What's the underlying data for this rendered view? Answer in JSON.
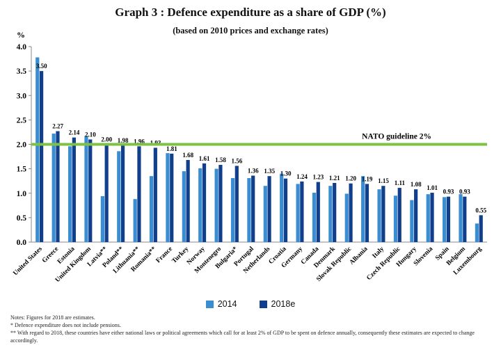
{
  "chart_data": {
    "type": "bar",
    "title": "Graph 3 : Defence expenditure as a share of GDP (%)",
    "subtitle": "(based on 2010 prices and exchange rates)",
    "ylabel": "%",
    "ylim": [
      0,
      4
    ],
    "yticks": [
      "0.0",
      "0.5",
      "1.0",
      "1.5",
      "2.0",
      "2.5",
      "3.0",
      "3.5",
      "4.0"
    ],
    "categories": [
      "United States",
      "Greece",
      "Estonia",
      "United Kingdom",
      "Latvia**",
      "Poland**",
      "Lithuania**",
      "Romania**",
      "France",
      "Turkey",
      "Norway",
      "Montenegro",
      "Bulgaria*",
      "Portugal",
      "Netherlands",
      "Croatia",
      "Germany",
      "Canada",
      "Denmark",
      "Slovak Republic",
      "Albania",
      "Italy",
      "Czech Republic",
      "Hungary",
      "Slovenia",
      "Spain",
      "Belgium",
      "Luxembourg"
    ],
    "series": [
      {
        "name": "2014",
        "color": "#3a8dd0",
        "values": [
          3.78,
          2.22,
          1.96,
          2.17,
          0.94,
          1.86,
          0.88,
          1.35,
          1.82,
          1.45,
          1.51,
          1.5,
          1.31,
          1.31,
          1.15,
          1.4,
          1.19,
          1.01,
          1.15,
          0.99,
          1.35,
          1.08,
          0.95,
          0.86,
          0.98,
          0.92,
          0.98,
          0.38
        ]
      },
      {
        "name": "2018e",
        "color": "#123f8c",
        "values": [
          3.5,
          2.27,
          2.14,
          2.1,
          2.0,
          1.98,
          1.96,
          1.93,
          1.81,
          1.68,
          1.61,
          1.58,
          1.56,
          1.36,
          1.35,
          1.3,
          1.24,
          1.23,
          1.21,
          1.2,
          1.19,
          1.15,
          1.11,
          1.08,
          1.01,
          0.93,
          0.93,
          0.55
        ]
      }
    ],
    "data_labels": [
      "3.50",
      "2.27",
      "2.14",
      "2.10",
      "2.00",
      "1.98",
      "1.96",
      "1.93",
      "1.81",
      "1.68",
      "1.61",
      "1.58",
      "1.56",
      "1.36",
      "1.35",
      "1.30",
      "1.24",
      "1.23",
      "1.21",
      "1.20",
      "1.19",
      "1.15",
      "1.11",
      "1.08",
      "1.01",
      "0.93",
      "0.93",
      "0.55"
    ],
    "reference_line": {
      "value": 2.0,
      "label": "NATO guideline 2%",
      "color": "#7dc242"
    },
    "legend_placement": "bottom-center",
    "grid": false
  },
  "notes": {
    "line1": "Notes: Figures for 2018 are estimates.",
    "line2": "*   Defence expenditure does not include pensions.",
    "line3": "**  With regard to 2018, these countries have either national laws or political agreements which call for at least 2% of GDP to be spent on defence annually, consequently these estimates are expected to change accordingly."
  }
}
